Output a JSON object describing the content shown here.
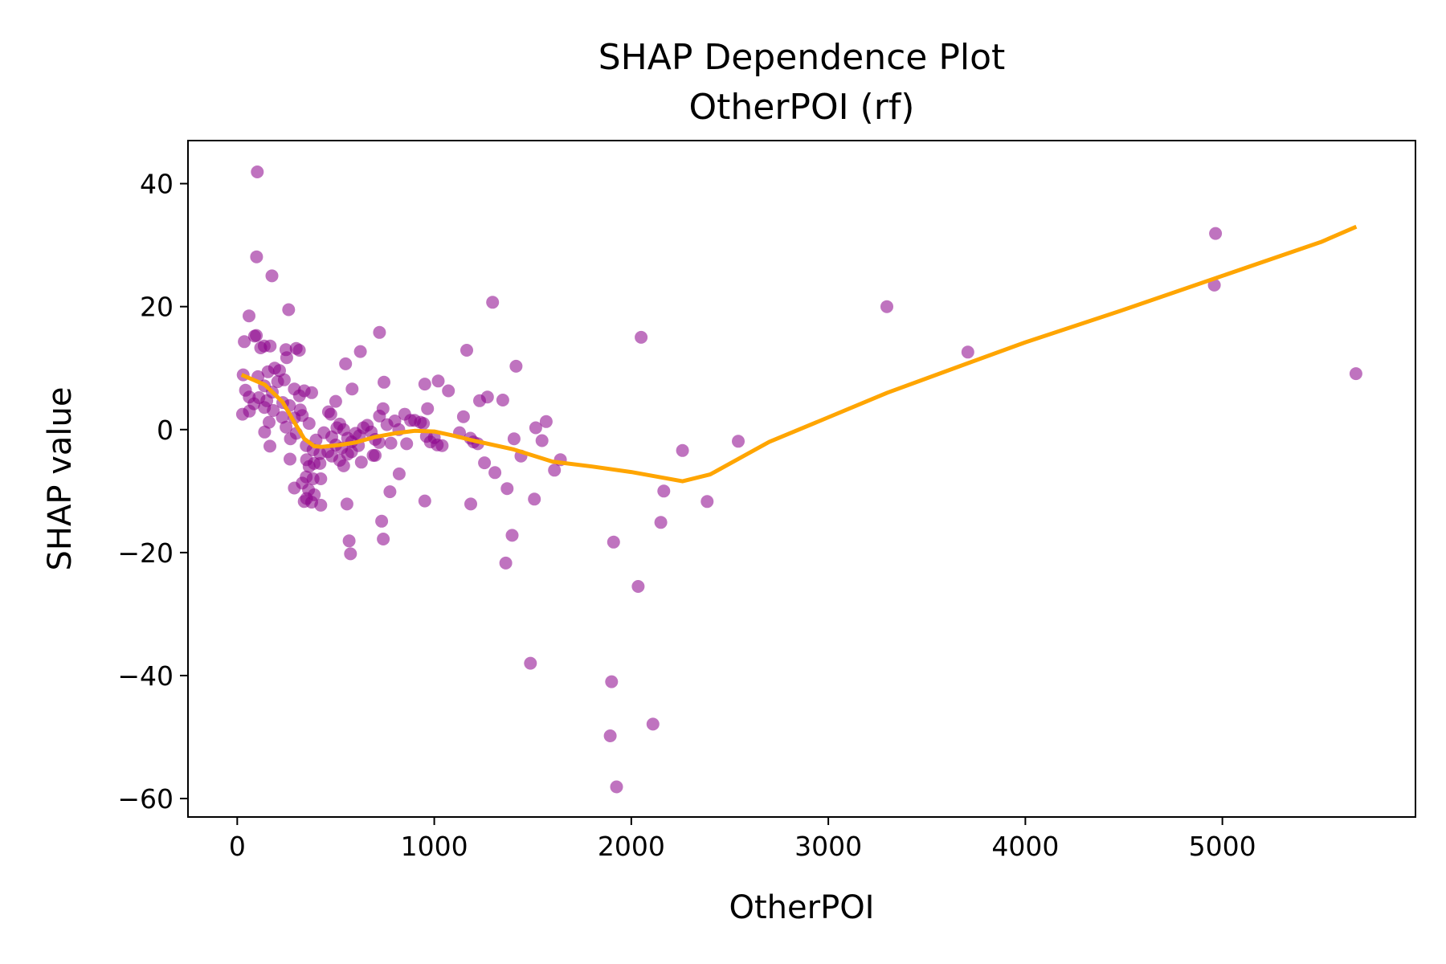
{
  "chart_data": {
    "type": "scatter",
    "title": "SHAP Dependence Plot",
    "subtitle": "OtherPOI (rf)",
    "xlabel": "OtherPOI",
    "ylabel": "SHAP value",
    "xlim": [
      -250,
      5980
    ],
    "ylim": [
      -63,
      47
    ],
    "xticks": [
      0,
      1000,
      2000,
      3000,
      4000,
      5000
    ],
    "xtick_labels": [
      "0",
      "1000",
      "2000",
      "3000",
      "4000",
      "5000"
    ],
    "yticks": [
      40,
      20,
      0,
      -20,
      -40,
      -60
    ],
    "ytick_labels": [
      "40",
      "20",
      "0",
      "−20",
      "−40",
      "−60"
    ],
    "grid": false,
    "legend": "none",
    "colors": {
      "points": "#8b008b",
      "trend": "#ffa500"
    },
    "series": [
      {
        "kind": "scatter",
        "points": [
          [
            102,
            41.9
          ],
          [
            98,
            28.1
          ],
          [
            176,
            25.0
          ],
          [
            261,
            19.5
          ],
          [
            60,
            18.5
          ],
          [
            88,
            15.2
          ],
          [
            97,
            15.3
          ],
          [
            36,
            14.3
          ],
          [
            137,
            13.6
          ],
          [
            167,
            13.6
          ],
          [
            247,
            13.0
          ],
          [
            299,
            13.2
          ],
          [
            315,
            12.9
          ],
          [
            119,
            13.3
          ],
          [
            251,
            11.7
          ],
          [
            190,
            10.0
          ],
          [
            215,
            9.6
          ],
          [
            156,
            9.4
          ],
          [
            30,
            8.9
          ],
          [
            105,
            8.6
          ],
          [
            239,
            8.1
          ],
          [
            205,
            7.8
          ],
          [
            138,
            7.1
          ],
          [
            290,
            6.6
          ],
          [
            42,
            6.4
          ],
          [
            178,
            6.1
          ],
          [
            340,
            6.3
          ],
          [
            316,
            5.5
          ],
          [
            61,
            5.3
          ],
          [
            110,
            5.2
          ],
          [
            378,
            6.0
          ],
          [
            150,
            4.7
          ],
          [
            231,
            4.4
          ],
          [
            85,
            4.2
          ],
          [
            265,
            3.9
          ],
          [
            138,
            3.6
          ],
          [
            183,
            3.1
          ],
          [
            62,
            3.0
          ],
          [
            320,
            3.2
          ],
          [
            27,
            2.5
          ],
          [
            229,
            2.0
          ],
          [
            290,
            1.9
          ],
          [
            330,
            2.3
          ],
          [
            162,
            1.2
          ],
          [
            365,
            1.0
          ],
          [
            248,
            0.4
          ],
          [
            139,
            -0.4
          ],
          [
            300,
            -0.6
          ],
          [
            270,
            -1.5
          ],
          [
            166,
            -2.7
          ],
          [
            400,
            -1.7
          ],
          [
            350,
            -2.6
          ],
          [
            385,
            -3.3
          ],
          [
            420,
            -3.9
          ],
          [
            460,
            -3.6
          ],
          [
            480,
            -4.3
          ],
          [
            352,
            -4.9
          ],
          [
            365,
            -6.0
          ],
          [
            390,
            -5.5
          ],
          [
            420,
            -5.5
          ],
          [
            268,
            -4.8
          ],
          [
            290,
            -9.5
          ],
          [
            330,
            -8.7
          ],
          [
            350,
            -7.7
          ],
          [
            362,
            -9.8
          ],
          [
            385,
            -8.0
          ],
          [
            424,
            -8.0
          ],
          [
            340,
            -11.7
          ],
          [
            352,
            -11.2
          ],
          [
            378,
            -11.8
          ],
          [
            391,
            -10.6
          ],
          [
            424,
            -12.3
          ],
          [
            463,
            2.9
          ],
          [
            475,
            2.5
          ],
          [
            500,
            4.6
          ],
          [
            440,
            -0.5
          ],
          [
            480,
            -1.2
          ],
          [
            506,
            0.3
          ],
          [
            520,
            0.9
          ],
          [
            540,
            0.0
          ],
          [
            560,
            -1.4
          ],
          [
            580,
            -2.0
          ],
          [
            600,
            -0.6
          ],
          [
            620,
            -1.0
          ],
          [
            640,
            0.3
          ],
          [
            660,
            0.7
          ],
          [
            680,
            -0.4
          ],
          [
            700,
            -1.6
          ],
          [
            720,
            -2.1
          ],
          [
            500,
            -2.5
          ],
          [
            530,
            -3.0
          ],
          [
            560,
            -4.0
          ],
          [
            520,
            -5.0
          ],
          [
            540,
            -5.9
          ],
          [
            580,
            -3.6
          ],
          [
            615,
            -2.6
          ],
          [
            630,
            -5.3
          ],
          [
            690,
            -4.2
          ],
          [
            700,
            -4.2
          ],
          [
            550,
            10.7
          ],
          [
            625,
            12.7
          ],
          [
            722,
            15.8
          ],
          [
            745,
            7.7
          ],
          [
            583,
            6.6
          ],
          [
            722,
            2.2
          ],
          [
            740,
            3.4
          ],
          [
            760,
            0.8
          ],
          [
            800,
            1.4
          ],
          [
            820,
            0.0
          ],
          [
            850,
            2.5
          ],
          [
            880,
            1.5
          ],
          [
            900,
            1.5
          ],
          [
            930,
            1.2
          ],
          [
            945,
            1.0
          ],
          [
            960,
            -1.1
          ],
          [
            980,
            -2.0
          ],
          [
            1000,
            -1.3
          ],
          [
            1015,
            -2.5
          ],
          [
            1040,
            -2.6
          ],
          [
            780,
            -2.2
          ],
          [
            860,
            -2.3
          ],
          [
            952,
            7.4
          ],
          [
            1020,
            7.9
          ],
          [
            1072,
            6.3
          ],
          [
            966,
            3.4
          ],
          [
            952,
            -11.6
          ],
          [
            822,
            -7.2
          ],
          [
            775,
            -10.1
          ],
          [
            733,
            -14.9
          ],
          [
            741,
            -17.8
          ],
          [
            557,
            -12.1
          ],
          [
            568,
            -18.1
          ],
          [
            575,
            -20.2
          ],
          [
            1165,
            12.9
          ],
          [
            1148,
            2.1
          ],
          [
            1128,
            -0.5
          ],
          [
            1183,
            -1.4
          ],
          [
            1199,
            -2.0
          ],
          [
            1221,
            -2.3
          ],
          [
            1185,
            -12.1
          ],
          [
            1230,
            4.7
          ],
          [
            1255,
            -5.4
          ],
          [
            1270,
            5.3
          ],
          [
            1296,
            20.7
          ],
          [
            1308,
            -7.0
          ],
          [
            1348,
            4.8
          ],
          [
            1370,
            -9.6
          ],
          [
            1363,
            -21.7
          ],
          [
            1395,
            -17.2
          ],
          [
            1405,
            -1.5
          ],
          [
            1415,
            10.3
          ],
          [
            1440,
            -4.3
          ],
          [
            1488,
            -38.0
          ],
          [
            1508,
            -11.3
          ],
          [
            1515,
            0.3
          ],
          [
            1547,
            -1.8
          ],
          [
            1568,
            1.3
          ],
          [
            1610,
            -6.6
          ],
          [
            1640,
            -4.9
          ],
          [
            1893,
            -49.8
          ],
          [
            1900,
            -41.0
          ],
          [
            1910,
            -18.3
          ],
          [
            1925,
            -58.1
          ],
          [
            2050,
            15.0
          ],
          [
            2035,
            -25.5
          ],
          [
            2110,
            -47.9
          ],
          [
            2150,
            -15.1
          ],
          [
            2165,
            -10.0
          ],
          [
            2260,
            -3.4
          ],
          [
            2385,
            -11.7
          ],
          [
            2543,
            -1.9
          ],
          [
            3297,
            20.0
          ],
          [
            3708,
            12.6
          ],
          [
            4959,
            23.5
          ],
          [
            4965,
            31.9
          ],
          [
            5678,
            9.1
          ]
        ]
      },
      {
        "kind": "line",
        "points": [
          [
            22,
            8.9
          ],
          [
            140,
            7.3
          ],
          [
            230,
            4.5
          ],
          [
            290,
            1.2
          ],
          [
            340,
            -1.5
          ],
          [
            390,
            -2.7
          ],
          [
            430,
            -2.8
          ],
          [
            520,
            -2.5
          ],
          [
            600,
            -2.1
          ],
          [
            700,
            -1.2
          ],
          [
            800,
            -0.6
          ],
          [
            900,
            -0.2
          ],
          [
            1000,
            -0.3
          ],
          [
            1100,
            -1.0
          ],
          [
            1200,
            -1.8
          ],
          [
            1400,
            -3.2
          ],
          [
            1600,
            -5.2
          ],
          [
            1800,
            -6.0
          ],
          [
            2000,
            -6.9
          ],
          [
            2260,
            -8.4
          ],
          [
            2400,
            -7.3
          ],
          [
            2700,
            -2.0
          ],
          [
            3000,
            2.0
          ],
          [
            3300,
            6.0
          ],
          [
            3700,
            10.7
          ],
          [
            4000,
            14.2
          ],
          [
            4500,
            19.5
          ],
          [
            5000,
            25.0
          ],
          [
            5500,
            30.5
          ],
          [
            5680,
            33.0
          ]
        ]
      }
    ]
  }
}
